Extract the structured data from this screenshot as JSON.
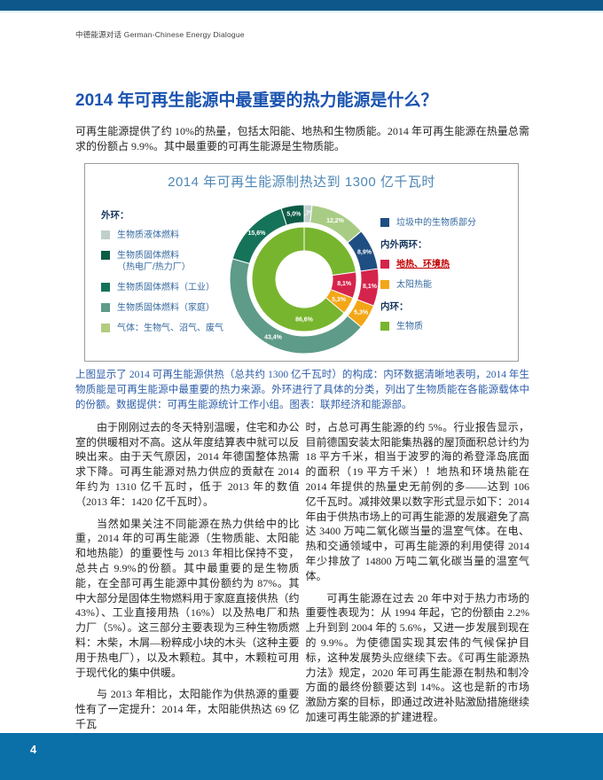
{
  "page": {
    "brand": "中德能源对话 German-Chinese Energy Dialogue",
    "page_number": "4"
  },
  "article": {
    "title": "2014 年可再生能源中最重要的热力能源是什么？",
    "intro": "可再生能源提供了约 10%的热量，包括太阳能、地热和生物质能。2014 年可再生能源在热量总需求的份额占 9.9%。其中最重要的可再生能源是生物质能。",
    "caption": "上图显示了 2014 可再生能源供热（总共约 1300 亿千瓦时）的构成：内环数据清晰地表明，2014 年生物质能是可再生能源中最重要的热力来源。外环进行了具体的分类，列出了生物质能在各能源载体中的份额。数据提供：可再生能源统计工作小组。图表：联邦经济和能源部。",
    "left_column": [
      "由于刚刚过去的冬天特别温暖，住宅和办公室的供暖相对不高。这从年度结算表中就可以反映出来。由于天气原因，2014 年德国整体热需求下降。可再生能源对热力供应的贡献在 2014 年约为 1310 亿千瓦时，低于 2013 年的数值（2013 年：1420 亿千瓦时）。",
      "当然如果关注不同能源在热力供给中的比重，2014 年的可再生能源（生物质能、太阳能和地热能）的重要性与 2013 年相比保持不变，总共占 9.9%的份额。其中最重要的是生物质能，在全部可再生能源中其份额约为 87%。其中大部分是固体生物燃料用于家庭直接供热（约 43%）、工业直接用热（16%）以及热电厂和热力厂（5%）。这三部分主要表现为三种生物质燃料：木柴，木屑—粉粹成小块的木头（这种主要用于热电厂），以及木颗粒。其中，木颗粒可用于现代化的集中供暖。",
      "与 2013 年相比，太阳能作为供热源的重要性有了一定提升：2014 年，太阳能供热达 69 亿千瓦"
    ],
    "right_column": [
      "时，占总可再生能源的约 5%。行业报告显示，目前德国安装太阳能集热器的屋顶面积总计约为 18 平方千米，相当于波罗的海的希登泽岛底面的面积（19 平方千米）！地热和环境热能在 2014 年提供的热量史无前例的多——达到 106 亿千瓦时。减排效果以数字形式显示如下：2014 年由于供热市场上的可再生能源的发展避免了高达 3400 万吨二氧化碳当量的温室气体。在电、热和交通领域中，可再生能源的利用使得 2014 年少排放了 14800 万吨二氧化碳当量的温室气体。",
      "可再生能源在过去 20 年中对于热力市场的重要性表现为：从 1994 年起，它的份额由 2.2%上升到到 2004 年的 5.6%，又进一步发展到现在的 9.9%。为使德国实现其宏伟的气候保护目标，这种发展势头应继续下去。《可再生能源热力法》规定，2020 年可再生能源在制热和制冷方面的最终份额要达到 14%。这也是新的市场激励方案的目标，即通过改进补贴激励措施继续加速可再生能源的扩建进程。"
    ]
  },
  "chart_data": {
    "type": "pie",
    "subtype": "double-ring-donut",
    "title": "2014 年可再生能源制热达到 1300 亿千瓦时",
    "total_label": "1300 亿千瓦时",
    "outer_ring": [
      {
        "name": "生物质液体燃料",
        "value": 1.7,
        "display": "1,7%",
        "color": "#bfcfc9"
      },
      {
        "name": "气体：生物气、沼气、废气",
        "value": 12.2,
        "display": "12,2%",
        "color": "#a9cc85"
      },
      {
        "name": "垃圾中的生物质部分",
        "value": 8.9,
        "display": "8,9%",
        "color": "#1f4e82"
      },
      {
        "name": "地热、环境热",
        "value": 8.1,
        "display": "8,1%",
        "color": "#d5244c"
      },
      {
        "name": "太阳热能",
        "value": 5.3,
        "display": "5,3%",
        "color": "#f3a616"
      },
      {
        "name": "生物质固体燃料（家庭）",
        "value": 43.4,
        "display": "43,4%",
        "color": "#5e9b88"
      },
      {
        "name": "生物质固体燃料（工业）",
        "value": 15.6,
        "display": "15,6%",
        "color": "#15735a"
      },
      {
        "name": "生物质固体燃料（热电厂/热力厂）",
        "value": 5.0,
        "display": "5,0%",
        "color": "#0d5c46"
      }
    ],
    "inner_ring": [
      {
        "name": "生物质",
        "value": 22.8,
        "display": "",
        "color": "#78b52e"
      },
      {
        "name": "地热、环境热",
        "value": 8.1,
        "display": "8,1%",
        "color": "#d5244c"
      },
      {
        "name": "太阳热能",
        "value": 5.3,
        "display": "5,3%",
        "color": "#f3a616"
      },
      {
        "name": "生物质",
        "value": 63.8,
        "display": "86,6%",
        "color": "#78b52e",
        "label_angle": 180
      }
    ],
    "legend_left": {
      "header": "外环：",
      "items": [
        {
          "label": "生物质液体燃料",
          "color": "#bfcfc9"
        },
        {
          "label": "生物质固体燃料\n（热电厂/热力厂）",
          "color": "#0d5c46"
        },
        {
          "label": "生物质固体燃料（工业）",
          "color": "#15735a"
        },
        {
          "label": "生物质固体燃料（家庭）",
          "color": "#5e9b88"
        },
        {
          "label": "气体：生物气、沼气、废气",
          "color": "#b3cc7e"
        }
      ]
    },
    "legend_right": {
      "groups": [
        {
          "header": "",
          "items": [
            {
              "label": "垃圾中的生物质部分",
              "color": "#1f4e82"
            }
          ]
        },
        {
          "header": "内外两环：",
          "items": [
            {
              "label": "地热、环境热",
              "color": "#d5244c",
              "emphasis": true
            },
            {
              "label": "太阳热能",
              "color": "#f3a616"
            }
          ]
        },
        {
          "header": "内环：",
          "items": [
            {
              "label": "生物质",
              "color": "#78b52e"
            }
          ]
        }
      ]
    }
  }
}
